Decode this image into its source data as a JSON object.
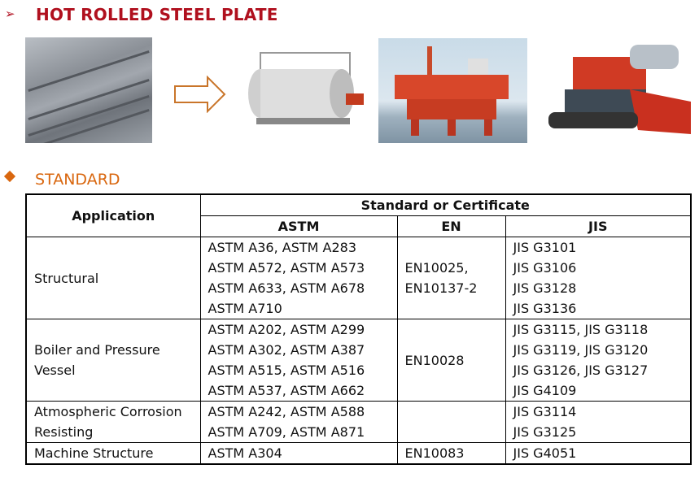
{
  "header": {
    "bullet": "➢",
    "title": "HOT ROLLED STEEL PLATE"
  },
  "images": [
    "steel-plates",
    "boiler",
    "offshore-platform",
    "harvester"
  ],
  "section": {
    "title": "STANDARD",
    "accent": "#d9670f"
  },
  "table": {
    "application_header": "Application",
    "group_header": "Standard or Certificate",
    "columns": [
      "ASTM",
      "EN",
      "JIS"
    ],
    "rows": [
      {
        "application": [
          "Structural"
        ],
        "astm": [
          "ASTM A36, ASTM A283",
          "ASTM A572, ASTM A573",
          "ASTM A633, ASTM A678",
          "ASTM A710"
        ],
        "en": [
          "EN10025,",
          "EN10137-2"
        ],
        "jis": [
          "JIS G3101",
          "JIS G3106",
          "JIS G3128",
          "JIS G3136"
        ]
      },
      {
        "application": [
          "Boiler and Pressure",
          "Vessel"
        ],
        "astm": [
          "ASTM A202, ASTM A299",
          "ASTM A302, ASTM A387",
          "ASTM A515, ASTM A516",
          "ASTM A537, ASTM A662"
        ],
        "en": [
          "EN10028"
        ],
        "jis": [
          "JIS G3115, JIS G3118",
          "JIS G3119, JIS G3120",
          "JIS G3126, JIS G3127",
          "JIS G4109"
        ]
      },
      {
        "application": [
          "Atmospheric Corrosion",
          "Resisting"
        ],
        "astm": [
          "ASTM A242, ASTM A588",
          "ASTM A709, ASTM A871"
        ],
        "en": [],
        "jis": [
          "JIS G3114",
          "JIS G3125"
        ]
      },
      {
        "application": [
          "Machine Structure"
        ],
        "astm": [
          "ASTM A304"
        ],
        "en": [
          "EN10083"
        ],
        "jis": [
          "JIS G4051"
        ]
      }
    ]
  }
}
